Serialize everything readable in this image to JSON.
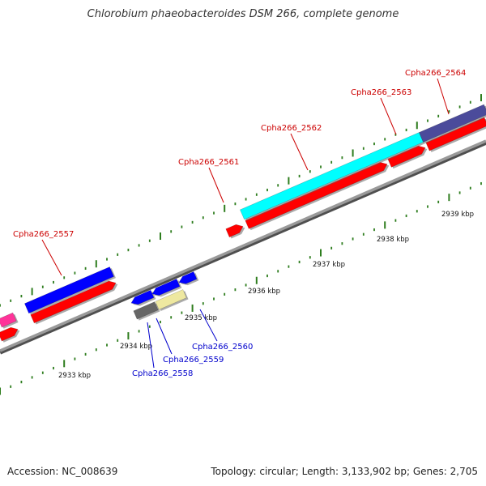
{
  "title": "Chlorobium phaeobacteroides DSM 266, complete genome",
  "footer": {
    "accession": "Accession: NC_008639",
    "summary": "Topology: circular; Length: 3,133,902 bp; Genes: 2,705"
  },
  "colors": {
    "backbone": "#8a8a8a",
    "tick": "#2e7d1e",
    "gene_label_forward": "#cc0000",
    "gene_label_reverse": "#0000cc",
    "cds_red": "#ff0000",
    "blue": "#0000ff",
    "cyan": "#00ffff",
    "slate": "#4b4b9b",
    "grey": "#666666",
    "khaki": "#eee8a0",
    "magenta": "#ff3399"
  },
  "scale": {
    "unit": "kbp",
    "tick_labels": [
      "2933 kbp",
      "2934 kbp",
      "2935 kbp",
      "2936 kbp",
      "2937 kbp",
      "2938 kbp",
      "2939 kbp"
    ]
  },
  "genes": [
    {
      "name": "Cpha266_2557",
      "strand": "forward",
      "color": "blue"
    },
    {
      "name": "Cpha266_2558",
      "strand": "reverse",
      "color": "grey"
    },
    {
      "name": "Cpha266_2559",
      "strand": "reverse",
      "color": "khaki"
    },
    {
      "name": "Cpha266_2560",
      "strand": "reverse",
      "color": "blue"
    },
    {
      "name": "Cpha266_2561",
      "strand": "forward",
      "color": "cds_red"
    },
    {
      "name": "Cpha266_2562",
      "strand": "forward",
      "color": "cyan"
    },
    {
      "name": "Cpha266_2563",
      "strand": "forward",
      "color": "cds_red"
    },
    {
      "name": "Cpha266_2564",
      "strand": "forward",
      "color": "slate"
    }
  ]
}
